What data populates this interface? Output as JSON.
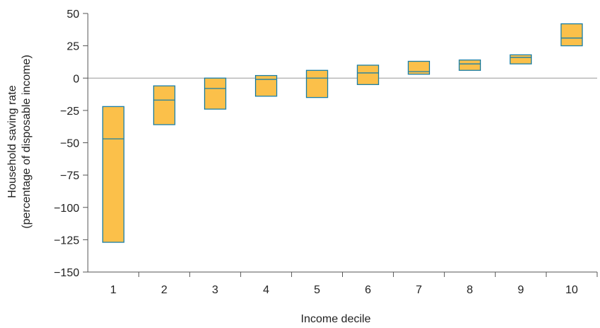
{
  "chart_data": {
    "type": "box",
    "title": "",
    "xlabel": "Income decile",
    "ylabel_lines": [
      "Household saving rate",
      "(percentage of disposable income)"
    ],
    "ylim": [
      -150,
      50
    ],
    "yticks": [
      50,
      25,
      0,
      -25,
      -50,
      -75,
      -100,
      -125,
      -150
    ],
    "ytick_labels": [
      "50",
      "25",
      "0",
      "−25",
      "−50",
      "−75",
      "−100",
      "−125",
      "−150"
    ],
    "categories": [
      "1",
      "2",
      "3",
      "4",
      "5",
      "6",
      "7",
      "8",
      "9",
      "10"
    ],
    "low": [
      -127,
      -36,
      -24,
      -14,
      -15,
      -5,
      3,
      6,
      11,
      25
    ],
    "median": [
      -47,
      -17,
      -8,
      -1,
      0,
      4,
      5,
      11,
      16,
      31
    ],
    "high": [
      -22,
      -6,
      0,
      2,
      6,
      10,
      13,
      14,
      18,
      42
    ],
    "grid": false,
    "colors": {
      "box_fill": "#FBC04A",
      "box_stroke": "#1A7FA8",
      "axis": "#555555",
      "zero_line": "#999999",
      "text": "#222222"
    }
  }
}
